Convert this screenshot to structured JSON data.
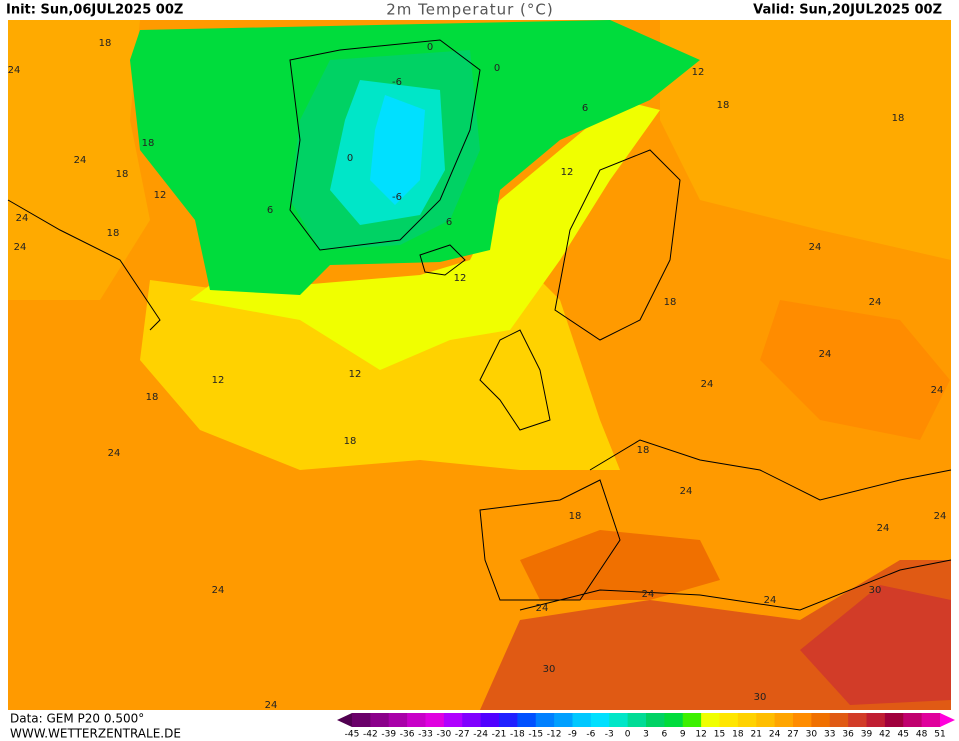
{
  "header": {
    "init": "Init: Sun,06JUL2025 00Z",
    "title": "2m Temperatur (°C)",
    "valid": "Valid: Sun,20JUL2025 00Z"
  },
  "footer": {
    "data": "Data: GEM P20 0.500°",
    "url": "WWW.WETTERZENTRALE.DE"
  },
  "map": {
    "contour_labels": [
      "18",
      "24",
      "0",
      "0",
      "12",
      "-6",
      "6",
      "18",
      "18",
      "18",
      "24",
      "18",
      "0",
      "12",
      "-6",
      "12",
      "6",
      "24",
      "6",
      "18",
      "24",
      "24",
      "12",
      "18",
      "24",
      "24",
      "12",
      "12",
      "24",
      "18",
      "24",
      "18",
      "18",
      "24",
      "24",
      "18",
      "24",
      "24",
      "24",
      "24",
      "24",
      "24",
      "30",
      "30",
      "30",
      "24"
    ]
  },
  "legend": {
    "labels": [
      -45,
      -42,
      -39,
      -36,
      -33,
      -30,
      -27,
      -24,
      -21,
      -18,
      -15,
      -12,
      -9,
      -6,
      -3,
      0,
      3,
      6,
      9,
      12,
      15,
      18,
      21,
      24,
      27,
      30,
      33,
      36,
      39,
      42,
      45,
      48,
      51
    ],
    "colors": [
      "#500050",
      "#6a006a",
      "#8a008a",
      "#a800a8",
      "#c800c8",
      "#e000e0",
      "#b000ff",
      "#8000ff",
      "#5000ff",
      "#2020ff",
      "#0050ff",
      "#0080ff",
      "#00a0ff",
      "#00c8ff",
      "#00e0ff",
      "#00e6c8",
      "#00dc96",
      "#00d264",
      "#00dc3c",
      "#3cf000",
      "#f0ff00",
      "#ffe600",
      "#ffd200",
      "#ffbe00",
      "#ffa500",
      "#ff8c00",
      "#f07000",
      "#e05a14",
      "#d23c28",
      "#c01e32",
      "#a0003c",
      "#c0006e",
      "#e0009c",
      "#ff00dc"
    ]
  }
}
